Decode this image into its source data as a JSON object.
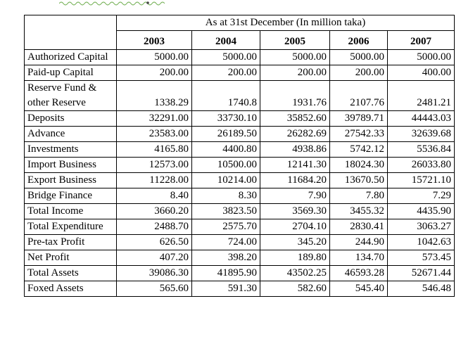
{
  "caption": "As at 31st December (In million taka)",
  "years": [
    "2003",
    "2004",
    "2005",
    "2006",
    "2007"
  ],
  "rows": [
    {
      "label": "Authorized Capital",
      "values": [
        "5000.00",
        "5000.00",
        "5000.00",
        "5000.00",
        "5000.00"
      ]
    },
    {
      "label": "Paid-up Capital",
      "values": [
        "200.00",
        "200.00",
        "200.00",
        "200.00",
        "400.00"
      ]
    },
    {
      "label": "Reserve Fund & other Reserve",
      "values": [
        "1338.29",
        "1740.8",
        "1931.76",
        "2107.76",
        "2481.21"
      ]
    },
    {
      "label": "Deposits",
      "values": [
        "32291.00",
        "33730.10",
        "35852.60",
        "39789.71",
        "44443.03"
      ]
    },
    {
      "label": "Advance",
      "values": [
        "23583.00",
        "26189.50",
        "26282.69",
        "27542.33",
        "32639.68"
      ]
    },
    {
      "label": "Investments",
      "values": [
        "4165.80",
        "4400.80",
        "4938.86",
        "5742.12",
        "5536.84"
      ]
    },
    {
      "label": "Import Business",
      "values": [
        "12573.00",
        "10500.00",
        "12141.30",
        "18024.30",
        "26033.80"
      ]
    },
    {
      "label": "Export Business",
      "values": [
        "11228.00",
        "10214.00",
        "11684.20",
        "13670.50",
        "15721.10"
      ]
    },
    {
      "label": "Bridge Finance",
      "values": [
        "8.40",
        "8.30",
        "7.90",
        "7.80",
        "7.29"
      ]
    },
    {
      "label": "Total Income",
      "values": [
        "3660.20",
        "3823.50",
        "3569.30",
        "3455.32",
        "4435.90"
      ]
    },
    {
      "label": "Total Expenditure",
      "values": [
        "2488.70",
        "2575.70",
        "2704.10",
        "2830.41",
        "3063.27"
      ]
    },
    {
      "label": "Pre-tax Profit",
      "values": [
        "626.50",
        "724.00",
        "345.20",
        "244.90",
        "1042.63"
      ]
    },
    {
      "label": "Net Profit",
      "values": [
        "407.20",
        "398.20",
        "189.80",
        "134.70",
        "573.45"
      ]
    },
    {
      "label": "Total Assets",
      "values": [
        "39086.30",
        "41895.90",
        "43502.25",
        "46593.28",
        "52671.44"
      ]
    },
    {
      "label": "Foxed Assets",
      "values": [
        "565.60",
        "591.30",
        "582.60",
        "545.40",
        "546.48"
      ]
    }
  ]
}
